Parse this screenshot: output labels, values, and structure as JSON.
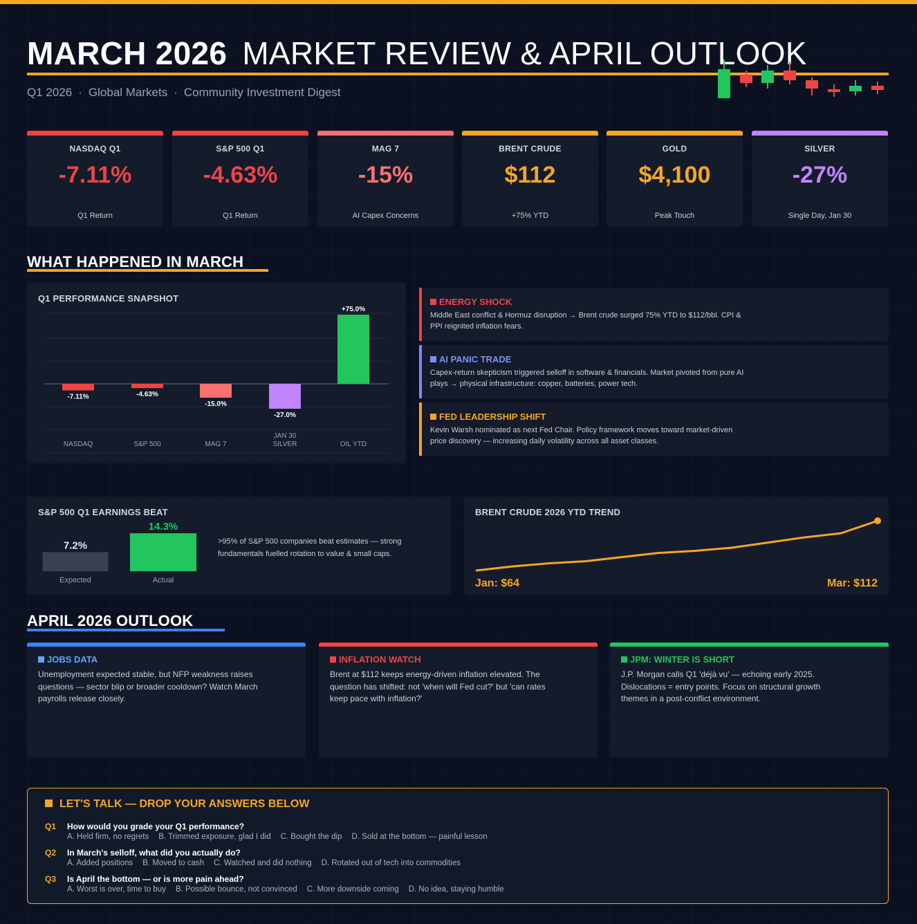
{
  "header": {
    "title_bold": "MARCH 2026",
    "title_rest": "MARKET REVIEW & APRIL OUTLOOK",
    "subtitle_items": [
      "Q1 2026",
      "Global Markets",
      "Community Investment Digest"
    ],
    "separator": "·"
  },
  "kpis": [
    {
      "label": "NASDAQ Q1",
      "value": "-7.11%",
      "note": "Q1 Return",
      "color": "#ef4444"
    },
    {
      "label": "S&P 500 Q1",
      "value": "-4.63%",
      "note": "Q1 Return",
      "color": "#ef4444"
    },
    {
      "label": "MAG 7",
      "value": "-15%",
      "note": "AI Capex Concerns",
      "color": "#f87171"
    },
    {
      "label": "BRENT CRUDE",
      "value": "$112",
      "note": "+75% YTD",
      "color": "#f5a623"
    },
    {
      "label": "GOLD",
      "value": "$4,100",
      "note": "Peak Touch",
      "color": "#f5a623"
    },
    {
      "label": "SILVER",
      "value": "-27%",
      "note": "Single Day, Jan 30",
      "color": "#c084fc"
    }
  ],
  "sections": {
    "march": "WHAT HAPPENED IN MARCH",
    "april": "APRIL 2026 OUTLOOK"
  },
  "q1_chart": {
    "title": "Q1 PERFORMANCE SNAPSHOT"
  },
  "chart_data": [
    {
      "type": "bar",
      "title": "Q1 PERFORMANCE SNAPSHOT",
      "categories": [
        "NASDAQ",
        "S&P 500",
        "MAG 7",
        "JAN 30 SILVER",
        "OIL YTD"
      ],
      "values": [
        -7.11,
        -4.63,
        -15.0,
        -27.0,
        75.0
      ],
      "value_labels": [
        "-7.11%",
        "-4.63%",
        "-15.0%",
        "-27.0%",
        "+75.0%"
      ],
      "colors": [
        "#ef4444",
        "#ef4444",
        "#f87171",
        "#c084fc",
        "#22c55e"
      ],
      "ylim": [
        -45,
        75
      ],
      "grid": true
    },
    {
      "type": "bar",
      "title": "S&P 500 Q1 EARNINGS BEAT",
      "categories": [
        "Expected",
        "Actual"
      ],
      "values": [
        7.2,
        14.3
      ],
      "value_labels": [
        "7.2%",
        "14.3%"
      ],
      "colors": [
        "#374151",
        "#22c55e"
      ]
    },
    {
      "type": "line",
      "title": "BRENT CRUDE 2026 YTD TREND",
      "x": [
        "Jan",
        "",
        "",
        "",
        "",
        "",
        "",
        "",
        "",
        "",
        "",
        "Mar"
      ],
      "values": [
        64,
        68,
        71,
        73,
        77,
        81,
        83,
        86,
        91,
        96,
        100,
        112
      ],
      "start_label": "Jan: $64",
      "end_label": "Mar: $112",
      "color": "#f5a623"
    }
  ],
  "events": [
    {
      "title": "ENERGY SHOCK",
      "color": "#ef4444",
      "text": "Middle East conflict & Hormuz disruption → Brent crude surged 75% YTD to $112/bbl. CPI & PPI reignited inflation fears."
    },
    {
      "title": "AI PANIC TRADE",
      "color": "#818cf8",
      "text": "Capex-return skepticism triggered selloff in software & financials. Market pivoted from pure AI plays → physical infrastructure: copper, batteries, power tech."
    },
    {
      "title": "FED LEADERSHIP SHIFT",
      "color": "#f5a623",
      "text": "Kevin Warsh nominated as next Fed Chair. Policy framework moves toward market-driven price discovery — increasing daily volatility across all asset classes."
    }
  ],
  "earnings": {
    "title": "S&P 500 Q1 EARNINGS BEAT",
    "expected_value": "7.2%",
    "expected_label": "Expected",
    "actual_value": "14.3%",
    "actual_label": "Actual",
    "text": ">95% of S&P 500 companies beat estimates — strong fundamentals fuelled rotation to value & small caps."
  },
  "brent": {
    "title": "BRENT CRUDE 2026 YTD TREND",
    "start_label": "Jan: $64",
    "end_label": "Mar: $112"
  },
  "outlook": [
    {
      "title": "JOBS DATA",
      "color": "#3b82f6",
      "title_color": "#60a5fa",
      "text": "Unemployment expected stable, but NFP weakness raises questions — sector blip or broader cooldown? Watch March payrolls release closely."
    },
    {
      "title": "INFLATION WATCH",
      "color": "#ef4444",
      "title_color": "#ef4444",
      "text": "Brent at $112 keeps energy-driven inflation elevated. The question has shifted: not 'when will Fed cut?' but 'can rates keep pace with inflation?'"
    },
    {
      "title": "JPM: WINTER IS SHORT",
      "color": "#22c55e",
      "title_color": "#22c55e",
      "text": "J.P. Morgan calls Q1 'déjà vu' — echoing early 2025. Dislocations = entry points. Focus on structural growth themes in a post-conflict environment."
    }
  ],
  "talk": {
    "title": "LET'S TALK  —  DROP YOUR ANSWERS BELOW",
    "questions": [
      {
        "num": "Q1",
        "text": "How would you grade your Q1 performance?",
        "options": [
          "A. Held firm, no regrets",
          "B. Trimmed exposure, glad I did",
          "C. Bought the dip",
          "D. Sold at the bottom — painful lesson"
        ]
      },
      {
        "num": "Q2",
        "text": "In March's selloff, what did you actually do?",
        "options": [
          "A. Added positions",
          "B. Moved to cash",
          "C. Watched and did nothing",
          "D. Rotated out of tech into commodities"
        ]
      },
      {
        "num": "Q3",
        "text": "Is April the bottom — or is more pain ahead?",
        "options": [
          "A. Worst is over, time to buy",
          "B. Possible bounce, not convinced",
          "C. More downside coming",
          "D. No idea, staying humble"
        ]
      }
    ]
  }
}
